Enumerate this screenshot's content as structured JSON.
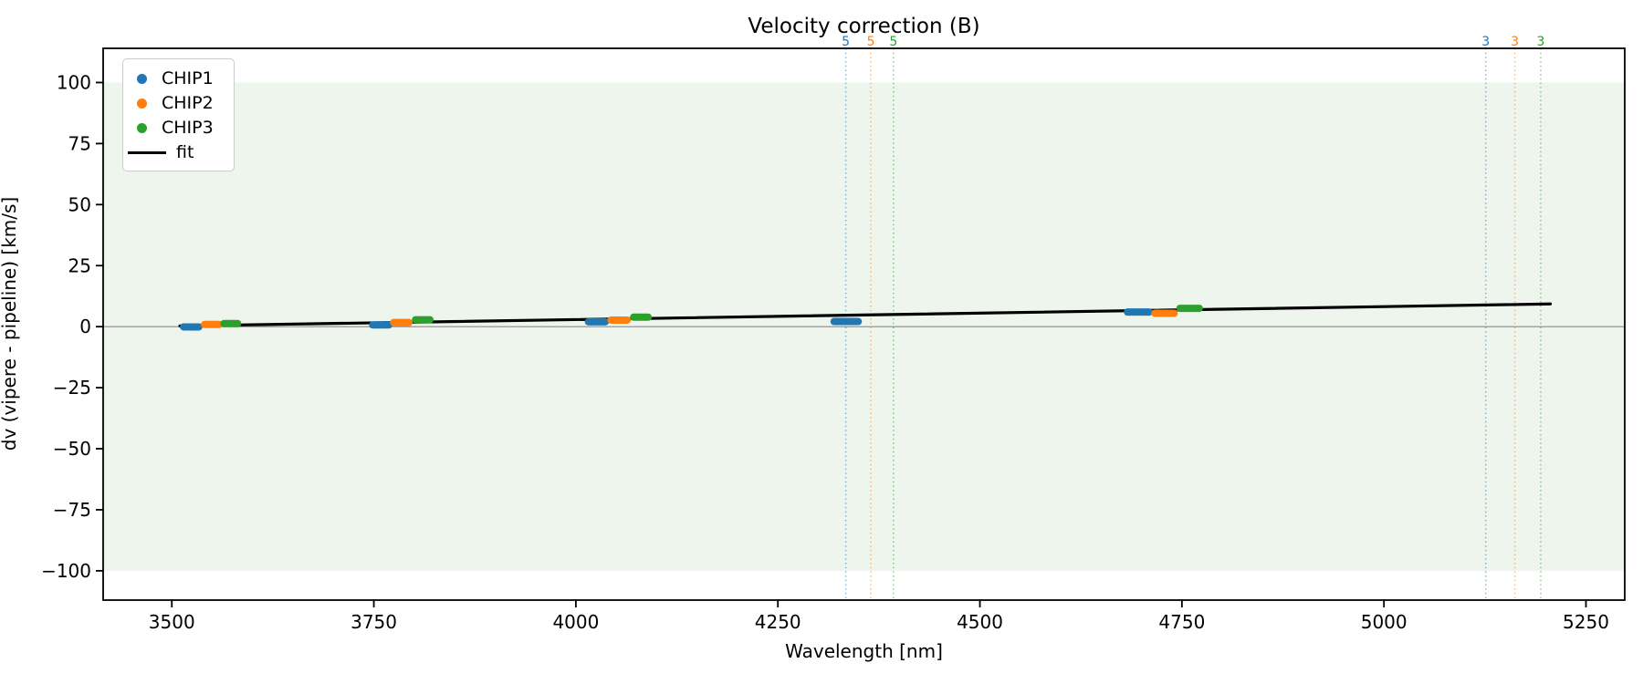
{
  "figure": {
    "background": "#ffffff"
  },
  "chart_data": {
    "type": "scatter",
    "title": "Velocity correction (B)",
    "xlabel": "Wavelength [nm]",
    "ylabel": "dv (vipere - pipeline) [km/s]",
    "xlim": [
      3415,
      5298
    ],
    "ylim": [
      -112,
      114
    ],
    "xticks": [
      3500,
      3750,
      4000,
      4250,
      4500,
      4750,
      5000,
      5250
    ],
    "yticks": [
      -100,
      -75,
      -50,
      -25,
      0,
      25,
      50,
      75,
      100
    ],
    "grid": false,
    "legend": {
      "position": "upper-left",
      "entries": [
        {
          "label": "CHIP1",
          "color": "#1f77b4",
          "marker": "dot"
        },
        {
          "label": "CHIP2",
          "color": "#ff7f0e",
          "marker": "dot"
        },
        {
          "label": "CHIP3",
          "color": "#2ca02c",
          "marker": "dot"
        },
        {
          "label": "fit",
          "color": "#000000",
          "marker": "line"
        }
      ]
    },
    "shaded_band": {
      "y0": -100,
      "y1": 100,
      "color": "#edf5ed"
    },
    "zero_line": {
      "y": 0,
      "color": "#8a8a8a"
    },
    "fit_line": {
      "x": [
        3510,
        5206
      ],
      "y": [
        0.3,
        9.3
      ],
      "color": "#000000"
    },
    "series": [
      {
        "name": "CHIP1",
        "color": "#1f77b4",
        "clusters": [
          {
            "x0": 3510,
            "x1": 3538,
            "y": -0.1
          },
          {
            "x0": 3744,
            "x1": 3773,
            "y": 0.7
          },
          {
            "x0": 4011,
            "x1": 4041,
            "y": 2.0
          },
          {
            "x0": 4315,
            "x1": 4354,
            "y": 2.1
          },
          {
            "x0": 4678,
            "x1": 4714,
            "y": 6.0
          }
        ]
      },
      {
        "name": "CHIP2",
        "color": "#ff7f0e",
        "clusters": [
          {
            "x0": 3536,
            "x1": 3563,
            "y": 0.9
          },
          {
            "x0": 3770,
            "x1": 3798,
            "y": 1.7
          },
          {
            "x0": 4039,
            "x1": 4068,
            "y": 2.7
          },
          {
            "x0": 4712,
            "x1": 4745,
            "y": 5.5
          }
        ]
      },
      {
        "name": "CHIP3",
        "color": "#2ca02c",
        "clusters": [
          {
            "x0": 3560,
            "x1": 3586,
            "y": 1.3
          },
          {
            "x0": 3797,
            "x1": 3824,
            "y": 2.8
          },
          {
            "x0": 4067,
            "x1": 4094,
            "y": 3.9
          },
          {
            "x0": 4743,
            "x1": 4776,
            "y": 7.5
          }
        ]
      }
    ],
    "vlines": [
      {
        "x": 4334,
        "label": "5",
        "color": "#1f77b4"
      },
      {
        "x": 4365,
        "label": "5",
        "color": "#ff7f0e"
      },
      {
        "x": 4393,
        "label": "5",
        "color": "#2ca02c"
      },
      {
        "x": 5126,
        "label": "3",
        "color": "#1f77b4"
      },
      {
        "x": 5162,
        "label": "3",
        "color": "#ff7f0e"
      },
      {
        "x": 5194,
        "label": "3",
        "color": "#2ca02c"
      }
    ]
  }
}
